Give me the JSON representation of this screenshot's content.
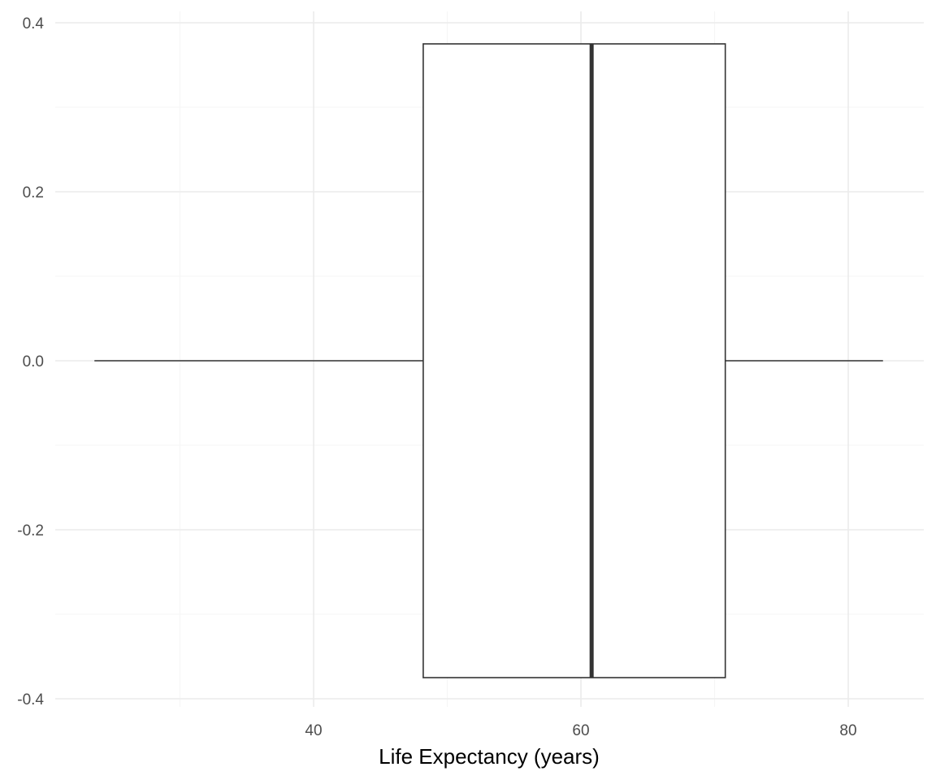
{
  "chart_data": {
    "type": "boxplot",
    "title": "",
    "xlabel": "Life Expectancy (years)",
    "ylabel": "",
    "xlim": [
      23.6,
      83.3
    ],
    "ylim": [
      -0.42,
      0.42
    ],
    "x_major_ticks": [
      40,
      60,
      80
    ],
    "x_minor_ticks": [
      30,
      50,
      70
    ],
    "y_major_ticks": [
      -0.4,
      -0.2,
      0.0,
      0.2,
      0.4
    ],
    "y_minor_ticks": [
      -0.3,
      -0.1,
      0.1,
      0.3
    ],
    "x_tick_labels": [
      "40",
      "60",
      "80"
    ],
    "y_tick_labels": [
      "-0.4",
      "-0.2",
      "0.0",
      "0.2",
      "0.4"
    ],
    "grid": true,
    "legend": "none",
    "box": {
      "whisker_low": 23.6,
      "q1": 48.2,
      "median": 60.8,
      "q3": 70.8,
      "whisker_high": 82.6,
      "y_center": 0.0,
      "y_half_height": 0.375
    },
    "colors": {
      "box_fill": "#ffffff",
      "box_stroke": "#333333",
      "grid_major": "#ebebeb",
      "grid_minor": "#f5f5f5",
      "tick_label": "#4d4d4d",
      "axis_title": "#000000"
    }
  }
}
